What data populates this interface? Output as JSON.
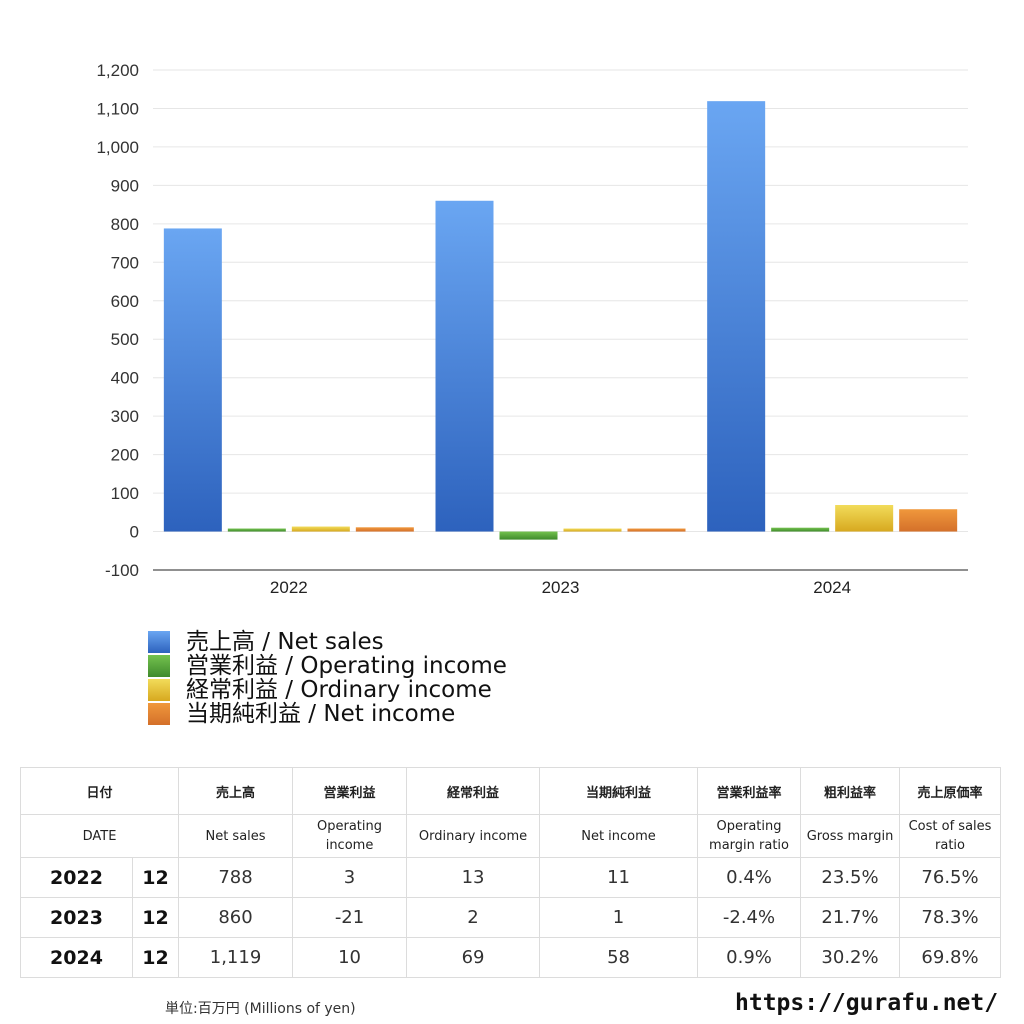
{
  "chart_data": {
    "type": "bar",
    "categories": [
      "2022",
      "2023",
      "2024"
    ],
    "series": [
      {
        "name": "売上高 / Net sales",
        "values": [
          788,
          860,
          1119
        ],
        "color": "#4a86d8"
      },
      {
        "name": "営業利益 / Operating income",
        "values": [
          3,
          -21,
          10
        ],
        "color": "#5aa83e"
      },
      {
        "name": "経常利益 / Ordinary income",
        "values": [
          13,
          2,
          69
        ],
        "color": "#e6c12e"
      },
      {
        "name": "当期純利益 / Net income",
        "values": [
          11,
          1,
          58
        ],
        "color": "#e07e2c"
      }
    ],
    "yticks": [
      "-100",
      "0",
      "100",
      "200",
      "300",
      "400",
      "500",
      "600",
      "700",
      "800",
      "900",
      "1,000",
      "1,100",
      "1,200"
    ],
    "ylim": [
      -100,
      1200
    ],
    "grid": true,
    "legend_position": "bottom-left"
  },
  "table": {
    "headers_ja": [
      "日付",
      "売上高",
      "営業利益",
      "経常利益",
      "当期純利益",
      "営業利益率",
      "粗利益率",
      "売上原価率"
    ],
    "headers_en": [
      "DATE",
      "Net sales",
      "Operating income",
      "Ordinary income",
      "Net income",
      "Operating margin ratio",
      "Gross margin",
      "Cost of sales ratio"
    ],
    "rows": [
      {
        "year": "2022",
        "month": "12",
        "net_sales": "788",
        "operating_income": "3",
        "ordinary_income": "13",
        "net_income": "11",
        "operating_margin": "0.4%",
        "gross_margin": "23.5%",
        "cost_ratio": "76.5%"
      },
      {
        "year": "2023",
        "month": "12",
        "net_sales": "860",
        "operating_income": "-21",
        "ordinary_income": "2",
        "net_income": "1",
        "operating_margin": "-2.4%",
        "gross_margin": "21.7%",
        "cost_ratio": "78.3%"
      },
      {
        "year": "2024",
        "month": "12",
        "net_sales": "1,119",
        "operating_income": "10",
        "ordinary_income": "69",
        "net_income": "58",
        "operating_margin": "0.9%",
        "gross_margin": "30.2%",
        "cost_ratio": "69.8%"
      }
    ]
  },
  "footer": {
    "unit": "単位:百万円 (Millions of yen)",
    "site": "https://gurafu.net/"
  },
  "colors": {
    "negative": "#d9442f"
  }
}
